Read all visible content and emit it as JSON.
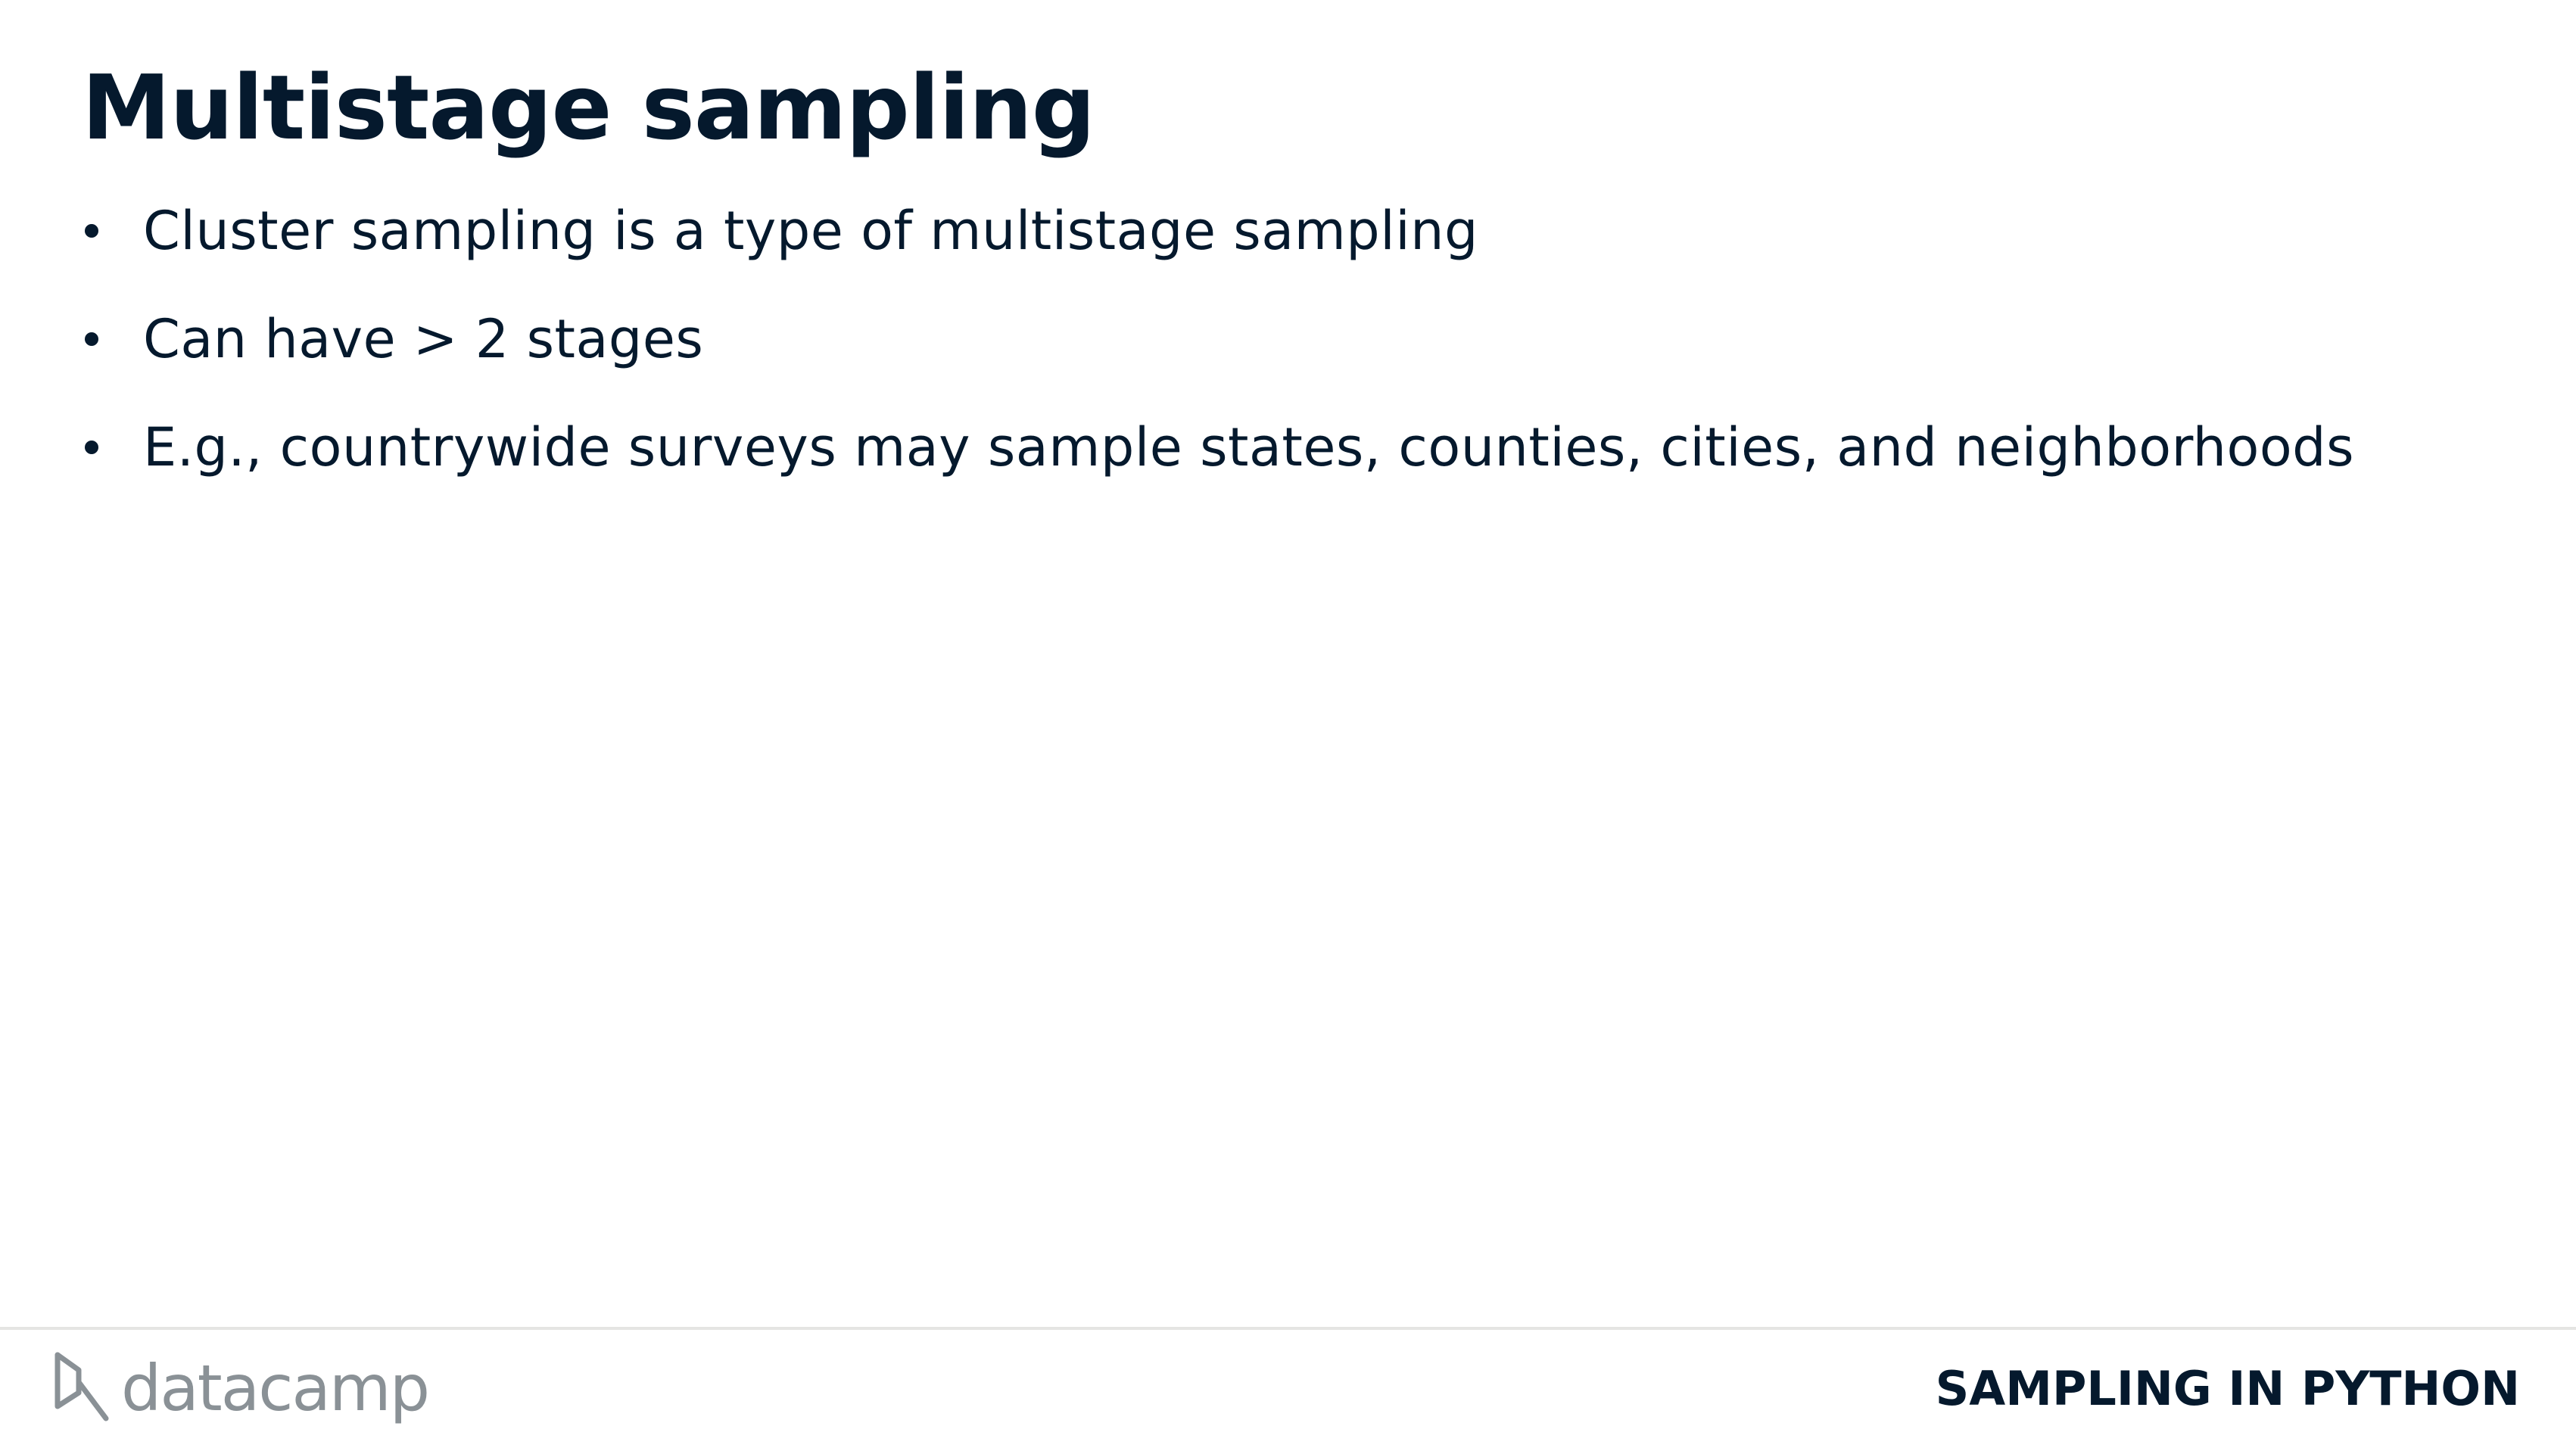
{
  "slide": {
    "title": "Multistage sampling",
    "bullets": [
      "Cluster sampling is a type of multistage sampling",
      "Can have > 2 stages",
      "E.g., countrywide surveys may sample states, counties, cities, and neighborhoods"
    ]
  },
  "footer": {
    "logo_text": "datacamp",
    "logo_icon": "datacamp-logo-icon",
    "course_name": "SAMPLING IN PYTHON"
  },
  "colors": {
    "text": "#05192d",
    "logo": "#8a9196",
    "divider": "#e5e5e3",
    "background": "#ffffff"
  }
}
